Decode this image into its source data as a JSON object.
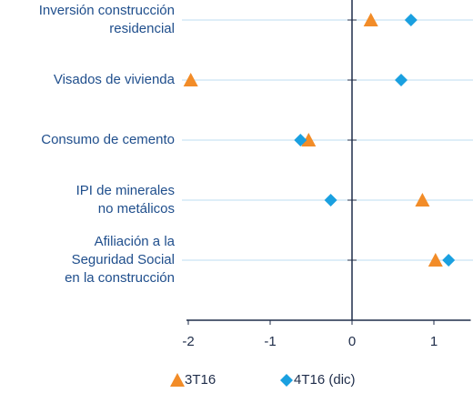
{
  "chart_data": {
    "type": "dot",
    "categories": [
      [
        "Inversión construcción",
        "residencial"
      ],
      [
        "Visados de vivienda"
      ],
      [
        "Consumo de cemento"
      ],
      [
        "IPI de minerales",
        "no metálicos"
      ],
      [
        "Afiliación a la",
        "Seguridad Social",
        "en la construcción"
      ]
    ],
    "series": [
      {
        "name": "3T16",
        "color": "#f28c28",
        "marker": "triangle",
        "values": [
          0.23,
          -1.97,
          -0.53,
          0.86,
          1.02
        ]
      },
      {
        "name": "4T16 (dic)",
        "color": "#1aa0e0",
        "marker": "diamond",
        "values": [
          0.72,
          0.6,
          -0.63,
          -0.26,
          1.18
        ]
      }
    ],
    "xlim": [
      -2,
      1.45
    ],
    "xticks": [
      -2,
      -1,
      0,
      1
    ],
    "grid": true
  }
}
